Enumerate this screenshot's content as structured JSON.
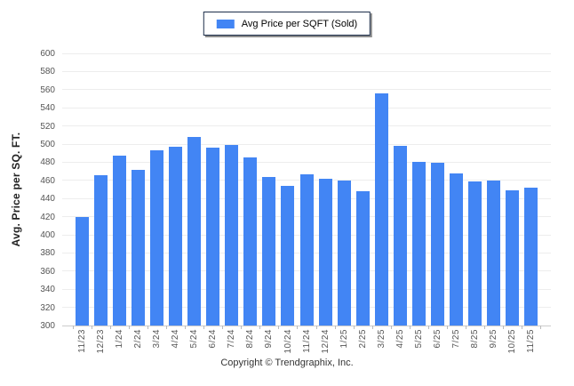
{
  "legend": {
    "label": "Avg Price per SQFT (Sold)",
    "swatch_color": "#4285f4"
  },
  "y_axis": {
    "title": "Avg. Price per SQ. FT."
  },
  "footer": {
    "copyright": "Copyright © Trendgraphix, Inc."
  },
  "colors": {
    "bar": "#4285f4",
    "gridline": "#ededed",
    "axis_line": "#cccccc",
    "tick_text": "#555555",
    "legend_border": "#1c2e4a"
  },
  "chart_data": {
    "type": "bar",
    "title": "Avg Price per SQFT (Sold)",
    "xlabel": "",
    "ylabel": "Avg. Price per SQ. FT.",
    "ylim": [
      300,
      600
    ],
    "y_tick_step": 20,
    "y_ticks": [
      600,
      580,
      560,
      540,
      520,
      500,
      480,
      460,
      440,
      420,
      400,
      380,
      360,
      340,
      320,
      300
    ],
    "grid": true,
    "legend_position": "top-center",
    "categories": [
      "11/23",
      "12/23",
      "1/24",
      "2/24",
      "3/24",
      "4/24",
      "5/24",
      "6/24",
      "7/24",
      "8/24",
      "9/24",
      "10/24",
      "11/24",
      "12/24",
      "1/25",
      "2/25",
      "3/25",
      "4/25",
      "5/25",
      "6/25",
      "7/25",
      "8/25",
      "9/25",
      "10/25",
      "11/25"
    ],
    "values": [
      420,
      466,
      487,
      472,
      493,
      497,
      508,
      496,
      499,
      485,
      464,
      454,
      467,
      462,
      460,
      448,
      556,
      498,
      480,
      479,
      468,
      459,
      460,
      449,
      452
    ]
  }
}
